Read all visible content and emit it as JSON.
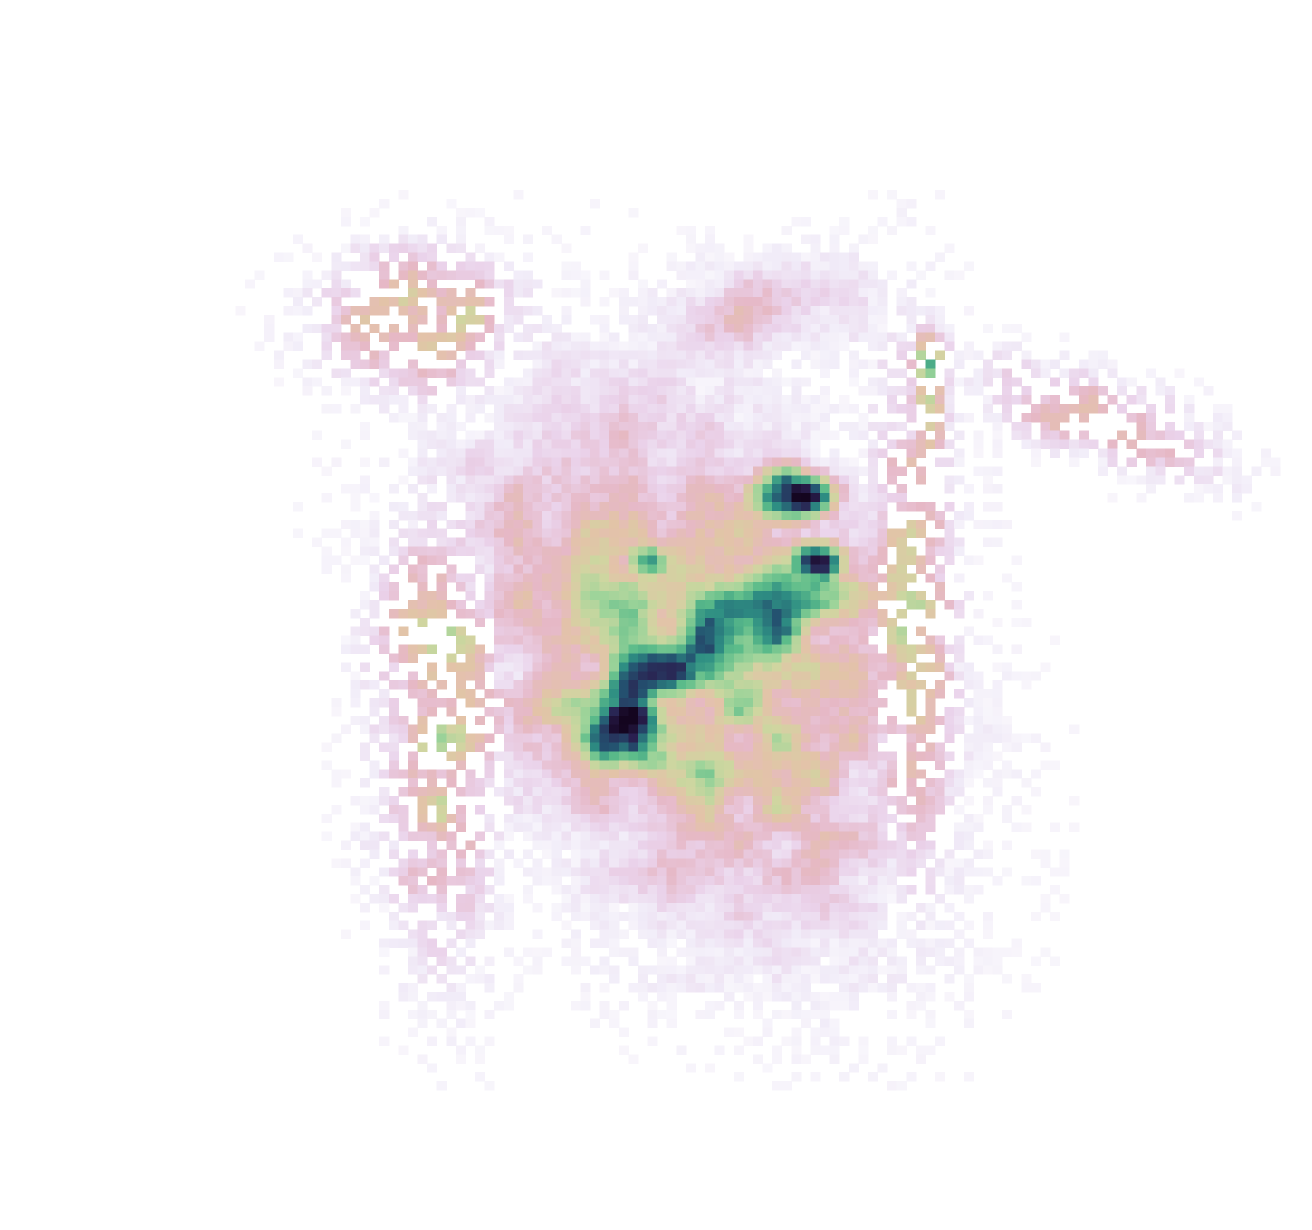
{
  "chart_data": {
    "type": "heatmap",
    "title": "",
    "xlabel": "",
    "ylabel": "",
    "axes_visible": false,
    "grid": false,
    "legend": "none",
    "colorbar": false,
    "colormap": {
      "name": "density",
      "stops": [
        "#ffffff",
        "#f1ecf8",
        "#ead2ea",
        "#e6b8c6",
        "#e3c3a8",
        "#cfd6a0",
        "#9fd49a",
        "#5cbc8a",
        "#2e8e83",
        "#24506f",
        "#2a1f4f",
        "#14051f"
      ]
    },
    "value_range": [
      0,
      1
    ],
    "grid_shape": {
      "rows": 110,
      "cols": 120
    },
    "seed": 7,
    "regions": [
      {
        "name": "upper-left-lobe",
        "cx": 0.255,
        "cy": 0.215,
        "rx": 0.105,
        "ry": 0.085,
        "angle": 0,
        "peak": 0.42,
        "dither": true
      },
      {
        "name": "upper-centre-lobe",
        "cx": 0.545,
        "cy": 0.205,
        "rx": 0.13,
        "ry": 0.07,
        "angle": -10,
        "peak": 0.22,
        "dither": false
      },
      {
        "name": "right-arm",
        "cx": 0.845,
        "cy": 0.315,
        "rx": 0.14,
        "ry": 0.05,
        "angle": 22,
        "peak": 0.33,
        "dither": true
      },
      {
        "name": "left-strip",
        "cx": 0.27,
        "cy": 0.62,
        "rx": 0.07,
        "ry": 0.27,
        "angle": 0,
        "peak": 0.42,
        "dither": true
      },
      {
        "name": "right-strip",
        "cx": 0.68,
        "cy": 0.52,
        "rx": 0.05,
        "ry": 0.32,
        "angle": 0,
        "peak": 0.4,
        "dither": true
      },
      {
        "name": "central-body",
        "cx": 0.485,
        "cy": 0.56,
        "rx": 0.2,
        "ry": 0.32,
        "angle": -22,
        "peak": 0.5,
        "dither": false
      },
      {
        "name": "dense-diagonal-band",
        "cx": 0.5,
        "cy": 0.55,
        "rx": 0.22,
        "ry": 0.085,
        "angle": -37,
        "peak": 0.78,
        "dither": false
      },
      {
        "name": "lower-core",
        "cx": 0.44,
        "cy": 0.635,
        "rx": 0.065,
        "ry": 0.06,
        "angle": 0,
        "peak": 0.95,
        "dither": false
      },
      {
        "name": "upper-core",
        "cx": 0.575,
        "cy": 0.395,
        "rx": 0.05,
        "ry": 0.04,
        "angle": 0,
        "peak": 0.9,
        "dither": false
      },
      {
        "name": "mid-right-core",
        "cx": 0.6,
        "cy": 0.46,
        "rx": 0.045,
        "ry": 0.035,
        "angle": 0,
        "peak": 0.82,
        "dither": false
      },
      {
        "name": "mid-left-core",
        "cx": 0.45,
        "cy": 0.46,
        "rx": 0.03,
        "ry": 0.03,
        "angle": 0,
        "peak": 0.8,
        "dither": false
      },
      {
        "name": "right-strip-hotspot",
        "cx": 0.695,
        "cy": 0.29,
        "rx": 0.02,
        "ry": 0.09,
        "angle": 0,
        "peak": 0.68,
        "dither": true
      }
    ]
  }
}
